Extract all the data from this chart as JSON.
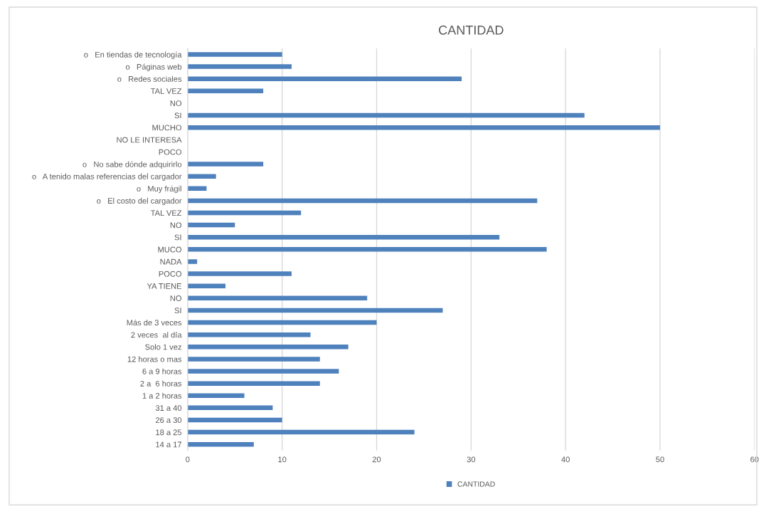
{
  "chart_data": {
    "type": "bar",
    "orientation": "horizontal",
    "title": "CANTIDAD",
    "categories": [
      "o   En tiendas de tecnología",
      "o   Páginas web",
      "o   Redes sociales",
      "TAL VEZ",
      "NO",
      "SI",
      "MUCHO",
      "NO LE INTERESA",
      "POCO",
      "o   No sabe dónde adquirirlo",
      "o   A tenido malas referencias del cargador",
      "o   Muy frágil",
      "o   El costo del cargador",
      "TAL VEZ",
      "NO",
      "SI",
      "MUCO",
      "NADA",
      "POCO",
      "YA TIENE",
      "NO",
      "SI",
      "Más de 3 veces",
      "2 veces  al día",
      "Solo 1 vez",
      "12 horas o mas",
      "6 a 9 horas",
      "2 a  6 horas",
      "1 a 2 horas",
      "31 a 40",
      "26 a 30",
      "18 a 25",
      "14 a 17"
    ],
    "series": [
      {
        "name": "CANTIDAD",
        "color": "#4f81bd",
        "values": [
          10,
          11,
          29,
          8,
          0,
          42,
          50,
          0,
          0,
          8,
          3,
          2,
          37,
          12,
          5,
          33,
          38,
          1,
          11,
          4,
          19,
          27,
          20,
          13,
          17,
          14,
          16,
          14,
          6,
          9,
          10,
          24,
          7
        ]
      }
    ],
    "xlim": [
      0,
      60
    ],
    "xticks": [
      0,
      10,
      20,
      30,
      40,
      50,
      60
    ],
    "grid": "x",
    "legend": "bottom"
  }
}
